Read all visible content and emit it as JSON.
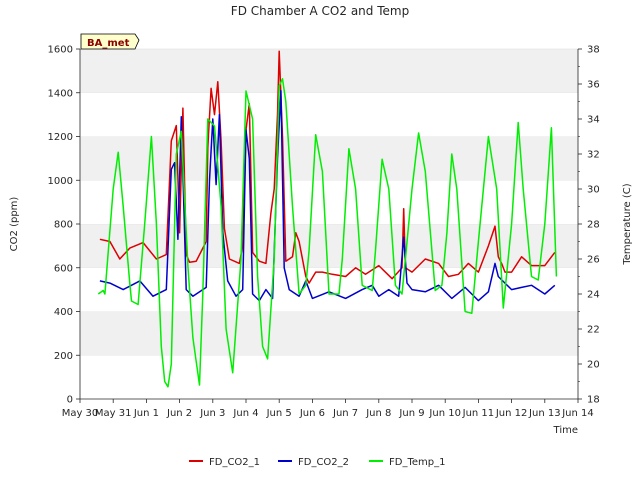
{
  "chart_data": {
    "type": "line",
    "title": "FD Chamber A CO2 and Temp",
    "badge": "BA_met",
    "xlabel": "Time",
    "ylabel_left": "CO2 (ppm)",
    "ylabel_right": "Temperature (C)",
    "xlim": [
      0,
      15
    ],
    "ylim_left": [
      0,
      1600
    ],
    "ylim_right": [
      18,
      38
    ],
    "x_ticks": [
      {
        "pos": 0,
        "label": "May 30"
      },
      {
        "pos": 1,
        "label": "May 31"
      },
      {
        "pos": 2,
        "label": "Jun 1"
      },
      {
        "pos": 3,
        "label": "Jun 2"
      },
      {
        "pos": 4,
        "label": "Jun 3"
      },
      {
        "pos": 5,
        "label": "Jun 4"
      },
      {
        "pos": 6,
        "label": "Jun 5"
      },
      {
        "pos": 7,
        "label": "Jun 6"
      },
      {
        "pos": 8,
        "label": "Jun 7"
      },
      {
        "pos": 9,
        "label": "Jun 8"
      },
      {
        "pos": 10,
        "label": "Jun 9"
      },
      {
        "pos": 11,
        "label": "Jun 10"
      },
      {
        "pos": 12,
        "label": "Jun 11"
      },
      {
        "pos": 13,
        "label": "Jun 12"
      },
      {
        "pos": 14,
        "label": "Jun 13"
      },
      {
        "pos": 15,
        "label": "Jun 14"
      }
    ],
    "y_ticks_left": [
      0,
      200,
      400,
      600,
      800,
      1000,
      1200,
      1400,
      1600
    ],
    "y_ticks_right": [
      18,
      20,
      22,
      24,
      26,
      28,
      30,
      32,
      34,
      36,
      38
    ],
    "grid": "horizontal bands",
    "legend_position": "bottom-center",
    "colors": {
      "FD_CO2_1": "#dd0000",
      "FD_CO2_2": "#0000cc",
      "FD_Temp_1": "#00ee00",
      "band": "#f0f0f0",
      "badge_bg": "#ffffcc"
    },
    "series": [
      {
        "name": "FD_CO2_1",
        "axis": "left",
        "x": [
          0.6,
          0.9,
          1.2,
          1.5,
          1.9,
          2.3,
          2.6,
          2.75,
          2.9,
          3.0,
          3.1,
          3.2,
          3.3,
          3.5,
          3.8,
          3.85,
          3.95,
          4.05,
          4.15,
          4.25,
          4.35,
          4.5,
          4.8,
          4.9,
          5.0,
          5.1,
          5.2,
          5.4,
          5.6,
          5.75,
          5.85,
          5.95,
          6.0,
          6.1,
          6.2,
          6.4,
          6.5,
          6.6,
          6.8,
          6.9,
          7.1,
          7.3,
          7.6,
          8.0,
          8.3,
          8.6,
          9.0,
          9.4,
          9.7,
          9.75,
          9.8,
          10.0,
          10.4,
          10.8,
          11.1,
          11.4,
          11.7,
          12.0,
          12.3,
          12.5,
          12.6,
          12.7,
          12.8,
          13.0,
          13.3,
          13.6,
          14.0,
          14.3
        ],
        "values": [
          730,
          720,
          640,
          690,
          715,
          640,
          660,
          1180,
          1250,
          760,
          1330,
          660,
          625,
          630,
          720,
          1150,
          1420,
          1300,
          1450,
          1180,
          780,
          640,
          620,
          700,
          1230,
          1350,
          670,
          630,
          620,
          850,
          960,
          1300,
          1590,
          1200,
          630,
          650,
          760,
          720,
          560,
          530,
          580,
          580,
          570,
          560,
          600,
          570,
          610,
          550,
          600,
          870,
          600,
          580,
          640,
          620,
          560,
          570,
          620,
          580,
          700,
          790,
          650,
          620,
          580,
          580,
          650,
          610,
          610,
          670
        ]
      },
      {
        "name": "FD_CO2_2",
        "axis": "left",
        "x": [
          0.6,
          0.9,
          1.3,
          1.8,
          2.2,
          2.6,
          2.75,
          2.85,
          2.95,
          3.05,
          3.2,
          3.4,
          3.8,
          3.9,
          4.0,
          4.1,
          4.2,
          4.3,
          4.45,
          4.7,
          4.9,
          5.0,
          5.1,
          5.2,
          5.4,
          5.6,
          5.8,
          5.95,
          6.05,
          6.15,
          6.3,
          6.6,
          6.8,
          7.0,
          7.5,
          8.0,
          8.5,
          8.8,
          9.0,
          9.3,
          9.6,
          9.75,
          9.85,
          10.0,
          10.4,
          10.8,
          11.2,
          11.6,
          12.0,
          12.3,
          12.5,
          12.6,
          12.8,
          13.0,
          13.3,
          13.6,
          14.0,
          14.3
        ],
        "values": [
          540,
          530,
          500,
          540,
          470,
          500,
          1050,
          1080,
          730,
          1290,
          500,
          470,
          510,
          1000,
          1280,
          980,
          1300,
          760,
          540,
          470,
          500,
          1230,
          1100,
          480,
          450,
          500,
          460,
          1100,
          1410,
          600,
          500,
          470,
          540,
          460,
          490,
          460,
          500,
          520,
          470,
          500,
          470,
          740,
          530,
          500,
          490,
          520,
          460,
          510,
          450,
          490,
          620,
          560,
          530,
          500,
          510,
          520,
          480,
          520
        ]
      },
      {
        "name": "FD_Temp_1",
        "axis": "right",
        "x": [
          0.55,
          0.7,
          0.75,
          1.0,
          1.15,
          1.3,
          1.5,
          1.55,
          1.75,
          1.95,
          2.15,
          2.3,
          2.45,
          2.55,
          2.65,
          2.75,
          2.9,
          3.05,
          3.25,
          3.4,
          3.6,
          3.7,
          3.85,
          4.05,
          4.25,
          4.4,
          4.6,
          4.85,
          5.0,
          5.2,
          5.35,
          5.5,
          5.65,
          5.85,
          6.0,
          6.1,
          6.2,
          6.4,
          6.6,
          6.8,
          6.9,
          7.1,
          7.3,
          7.5,
          7.8,
          7.9,
          8.1,
          8.3,
          8.5,
          8.8,
          8.9,
          9.1,
          9.3,
          9.5,
          9.7,
          9.8,
          10.0,
          10.2,
          10.4,
          10.7,
          10.9,
          11.05,
          11.2,
          11.35,
          11.6,
          11.8,
          12.0,
          12.3,
          12.55,
          12.75,
          13.0,
          13.2,
          13.35,
          13.6,
          13.8,
          14.0,
          14.2,
          14.35
        ],
        "values": [
          24.0,
          24.2,
          24.0,
          30.0,
          32.1,
          29.0,
          24.6,
          23.6,
          23.4,
          28.0,
          33.0,
          28.0,
          21.0,
          19.0,
          18.7,
          20.0,
          32.0,
          33.3,
          25.6,
          21.5,
          18.8,
          24.0,
          34.0,
          33.6,
          29.0,
          22.0,
          19.5,
          26.0,
          35.6,
          34.0,
          25.0,
          21.0,
          20.3,
          26.0,
          35.9,
          36.3,
          35.0,
          29.0,
          24.0,
          24.5,
          26.5,
          33.1,
          31.0,
          24.0,
          24.0,
          26.0,
          32.3,
          30.0,
          24.5,
          24.2,
          26.5,
          31.7,
          30.0,
          24.5,
          24.0,
          26.0,
          30.0,
          33.2,
          31.0,
          24.2,
          24.5,
          27.5,
          32.0,
          30.0,
          23.0,
          22.9,
          27.0,
          33.0,
          30.0,
          23.2,
          28.0,
          33.8,
          30.0,
          25.0,
          24.8,
          28.0,
          33.5,
          25.0
        ]
      }
    ]
  }
}
